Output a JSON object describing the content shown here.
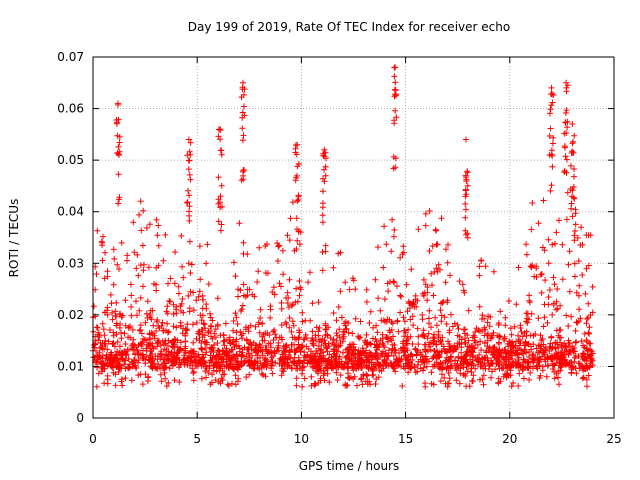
{
  "chart_data": {
    "type": "scatter",
    "title": "Day 199 of 2019, Rate Of TEC Index for receiver echo",
    "xlabel": "GPS time / hours",
    "ylabel": "ROTI / TECUs",
    "xlim": [
      0,
      25
    ],
    "ylim": [
      0,
      0.07
    ],
    "xticks": [
      0,
      5,
      10,
      15,
      20,
      25
    ],
    "xtick_labels": [
      "0",
      "5",
      "10",
      "15",
      "20",
      "25"
    ],
    "yticks": [
      0,
      0.01,
      0.02,
      0.03,
      0.04,
      0.05,
      0.06,
      0.07
    ],
    "ytick_labels": [
      "0",
      "0.01",
      "0.02",
      "0.03",
      "0.04",
      "0.05",
      "0.06",
      "0.07"
    ],
    "grid": true,
    "marker": "+",
    "color": "#ff0000",
    "data_range_x": [
      0,
      24
    ],
    "notable_peaks": [
      {
        "x": 1.2,
        "y": 0.061
      },
      {
        "x": 7.2,
        "y": 0.065
      },
      {
        "x": 14.5,
        "y": 0.068
      },
      {
        "x": 22.0,
        "y": 0.064
      },
      {
        "x": 22.7,
        "y": 0.065
      },
      {
        "x": 23.0,
        "y": 0.057
      },
      {
        "x": 17.9,
        "y": 0.054
      },
      {
        "x": 4.6,
        "y": 0.054
      },
      {
        "x": 11.1,
        "y": 0.052
      },
      {
        "x": 9.8,
        "y": 0.053
      },
      {
        "x": 6.1,
        "y": 0.056
      }
    ]
  }
}
